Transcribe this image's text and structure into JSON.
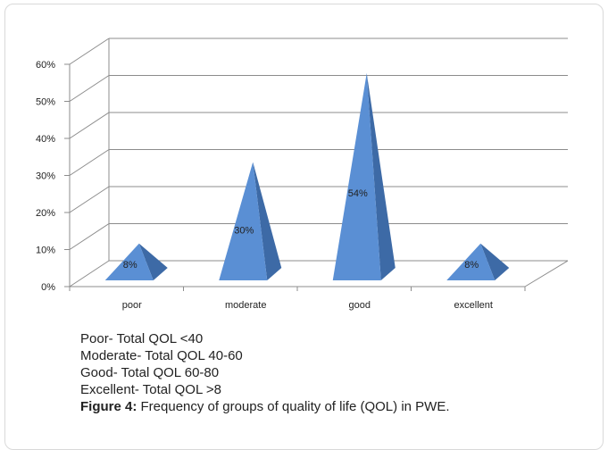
{
  "chart_data": {
    "type": "bar",
    "style": "3d-pyramid",
    "categories": [
      "poor",
      "moderate",
      "good",
      "excellent"
    ],
    "values": [
      8,
      30,
      54,
      8
    ],
    "data_labels": [
      "8%",
      "30%",
      "54%",
      "8%"
    ],
    "y_ticks": [
      "0%",
      "10%",
      "20%",
      "30%",
      "40%",
      "50%",
      "60%"
    ],
    "ylim": [
      0,
      60
    ],
    "grid": true,
    "colors": {
      "face": "#5a8fd4",
      "side": "#3d6aa6"
    }
  },
  "caption": {
    "legend_lines": [
      "Poor- Total QOL <40",
      "Moderate- Total QOL 40-60",
      "Good- Total QOL 60-80",
      "Excellent- Total QOL >8"
    ],
    "figure_label": "Figure 4:",
    "figure_text": " Frequency of groups of quality of life (QOL) in PWE."
  }
}
